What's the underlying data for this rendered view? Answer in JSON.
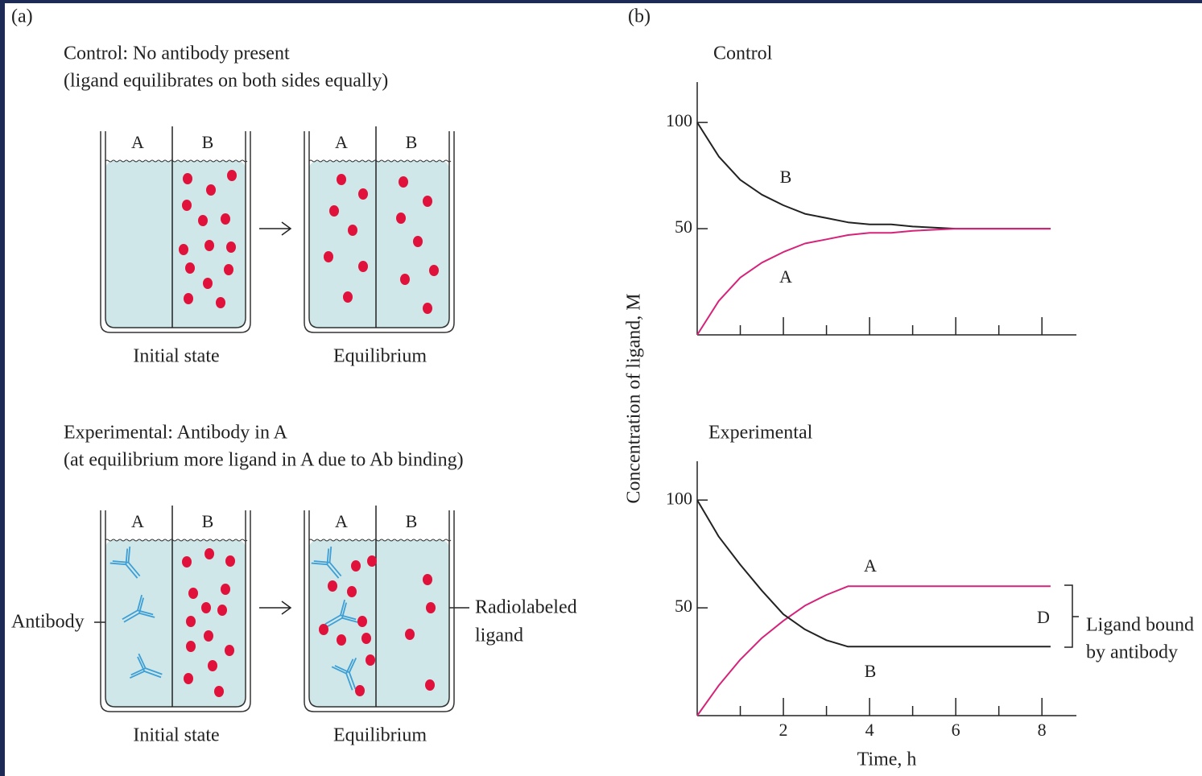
{
  "panel_a": {
    "label": "(a)",
    "control": {
      "title": "Control: No antibody present",
      "subtitle": "(ligand equilibrates on both sides equally)",
      "beakers": [
        {
          "labels": [
            "A",
            "B"
          ],
          "caption": "Initial state"
        },
        {
          "labels": [
            "A",
            "B"
          ],
          "caption": "Equilibrium"
        }
      ]
    },
    "experimental": {
      "title": "Experimental: Antibody in A",
      "subtitle": "(at equilibrium more ligand in A due to Ab binding)",
      "beakers": [
        {
          "labels": [
            "A",
            "B"
          ],
          "caption": "Initial state"
        },
        {
          "labels": [
            "A",
            "B"
          ],
          "caption": "Equilibrium"
        }
      ],
      "antibody_label": "Antibody",
      "ligand_label": [
        "Radiolabeled",
        "ligand"
      ]
    }
  },
  "panel_b": {
    "label": "(b)",
    "ylabel": "Concentration of ligand, M"
  },
  "chart_data": [
    {
      "type": "line",
      "title": "Control",
      "x": [
        0,
        0.5,
        1,
        1.5,
        2,
        2.5,
        3,
        3.5,
        4,
        4.5,
        5,
        6,
        7,
        8.2
      ],
      "series": [
        {
          "name": "B",
          "color": "#222222",
          "values": [
            100,
            84,
            73,
            66,
            61,
            57,
            55,
            53,
            52,
            52,
            51,
            50,
            50,
            50
          ]
        },
        {
          "name": "A",
          "color": "#d6237a",
          "values": [
            0,
            16,
            27,
            34,
            39,
            43,
            45,
            47,
            48,
            48,
            49,
            50,
            50,
            50
          ]
        }
      ],
      "xlim": [
        0,
        8.8
      ],
      "ylim": [
        0,
        119
      ],
      "yticks": [
        50,
        100
      ],
      "xticks": [
        2,
        4,
        6,
        8
      ],
      "xminor_ticks": [
        1,
        3,
        5,
        7
      ],
      "show_xtick_labels": false
    },
    {
      "type": "line",
      "title": "Experimental",
      "x": [
        0,
        0.5,
        1,
        1.5,
        2,
        2.5,
        3,
        3.5,
        4,
        5,
        6,
        7,
        8.2
      ],
      "series": [
        {
          "name": "A",
          "color": "#d6237a",
          "values": [
            0,
            14,
            26,
            36,
            44,
            51,
            56,
            60,
            60,
            60,
            60,
            60,
            60
          ]
        },
        {
          "name": "B",
          "color": "#222222",
          "values": [
            100,
            83,
            70,
            58,
            47,
            40,
            35,
            32,
            32,
            32,
            32,
            32,
            32
          ]
        }
      ],
      "xlim": [
        0,
        8.8
      ],
      "ylim": [
        0,
        118
      ],
      "yticks": [
        50,
        100
      ],
      "xticks": [
        2,
        4,
        6,
        8
      ],
      "xminor_ticks": [
        1,
        3,
        5,
        7
      ],
      "show_xtick_labels": true,
      "xlabel": "Time, h",
      "bracket_label": "D",
      "bracket_note": [
        "Ligand bound",
        "by antibody"
      ]
    }
  ]
}
